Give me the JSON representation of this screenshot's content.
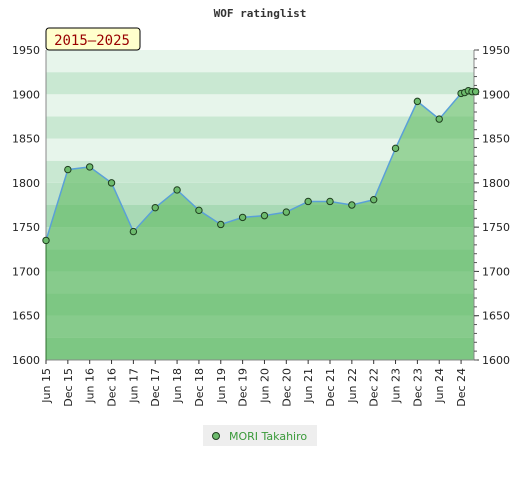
{
  "chart_data": {
    "type": "area",
    "title": "WOF ratinglist",
    "period_badge": "2015–2025",
    "ylim": [
      1600,
      1950
    ],
    "y_ticks": [
      1600,
      1650,
      1700,
      1750,
      1800,
      1850,
      1900,
      1950
    ],
    "x_ticks": [
      "Jun 15",
      "Dec 15",
      "Jun 16",
      "Dec 16",
      "Jun 17",
      "Dec 17",
      "Jun 18",
      "Dec 18",
      "Jun 19",
      "Dec 19",
      "Jun 20",
      "Dec 20",
      "Jun 21",
      "Dec 21",
      "Jun 22",
      "Dec 22",
      "Jun 23",
      "Dec 23",
      "Jun 24",
      "Dec 24"
    ],
    "grid": true,
    "legend_position": "bottom-center",
    "colors": {
      "line": "#5aa0d8",
      "marker_fill": "#6dbb6d",
      "marker_stroke": "#1f3f1f",
      "area_fill": "#5ab85a",
      "badge_bg": "#ffffcc",
      "legend_text": "#3a9a3a"
    },
    "series": [
      {
        "name": "MORI Takahiro",
        "points": [
          {
            "x": "Jun 15",
            "y": 1735
          },
          {
            "x": "Dec 15",
            "y": 1815
          },
          {
            "x": "Jun 16",
            "y": 1818
          },
          {
            "x": "Dec 16",
            "y": 1800
          },
          {
            "x": "Jun 17",
            "y": 1745
          },
          {
            "x": "Dec 17",
            "y": 1772
          },
          {
            "x": "Jun 18",
            "y": 1792
          },
          {
            "x": "Dec 18",
            "y": 1769
          },
          {
            "x": "Jun 19",
            "y": 1753
          },
          {
            "x": "Dec 19",
            "y": 1761
          },
          {
            "x": "Jun 20",
            "y": 1763
          },
          {
            "x": "Dec 20",
            "y": 1767
          },
          {
            "x": "Jun 21",
            "y": 1779
          },
          {
            "x": "Dec 21",
            "y": 1779
          },
          {
            "x": "Jun 22",
            "y": 1775
          },
          {
            "x": "Dec 22",
            "y": 1781
          },
          {
            "x": "Jun 23",
            "y": 1839
          },
          {
            "x": "Dec 23",
            "y": 1892
          },
          {
            "x": "Jun 24",
            "y": 1872
          },
          {
            "x": "Dec 24",
            "y": 1901
          },
          {
            "x": "Jan 25",
            "y": 1902
          },
          {
            "x": "Feb 25",
            "y": 1904
          },
          {
            "x": "Mar 25",
            "y": 1903
          },
          {
            "x": "Apr 25",
            "y": 1903
          }
        ]
      }
    ]
  }
}
